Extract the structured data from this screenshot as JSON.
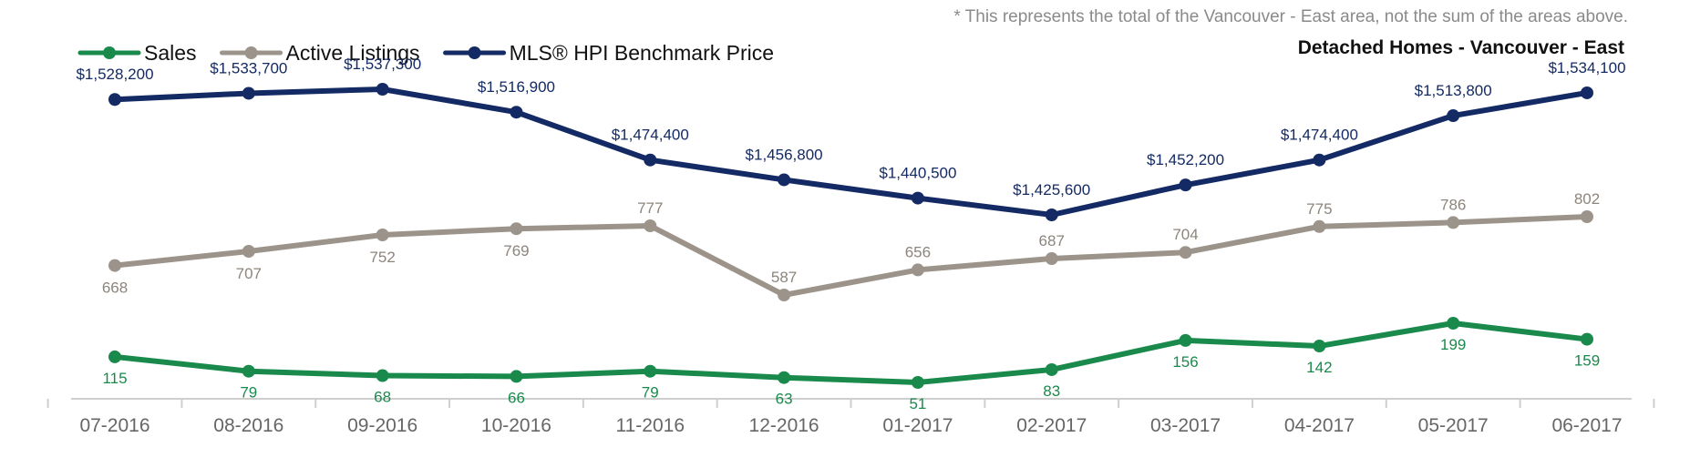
{
  "chart_data": {
    "type": "line",
    "title": "Detached Homes - Vancouver - East",
    "footnote": "* This represents the total of the Vancouver - East area, not the sum of the areas above.",
    "xlabel": "",
    "ylabel": "",
    "grid": false,
    "legend_position": "top-left",
    "categories": [
      "07-2016",
      "08-2016",
      "09-2016",
      "10-2016",
      "11-2016",
      "12-2016",
      "01-2017",
      "02-2017",
      "03-2017",
      "04-2017",
      "05-2017",
      "06-2017"
    ],
    "series": [
      {
        "name": "Sales",
        "color": "#1a8a4c",
        "values": [
          115,
          79,
          68,
          66,
          79,
          63,
          51,
          83,
          156,
          142,
          199,
          159
        ],
        "labels": [
          "115",
          "79",
          "68",
          "66",
          "79",
          "63",
          "51",
          "83",
          "156",
          "142",
          "199",
          "159"
        ]
      },
      {
        "name": "Active Listings",
        "color": "#9c948a",
        "values": [
          668,
          707,
          752,
          769,
          777,
          587,
          656,
          687,
          704,
          775,
          786,
          802
        ],
        "labels": [
          "668",
          "707",
          "752",
          "769",
          "777",
          "587",
          "656",
          "687",
          "704",
          "775",
          "786",
          "802"
        ]
      },
      {
        "name": "MLS® HPI Benchmark Price",
        "color": "#142a64",
        "values": [
          1528200,
          1533700,
          1537300,
          1516900,
          1474400,
          1456800,
          1440500,
          1425600,
          1452200,
          1474400,
          1513800,
          1534100
        ],
        "labels": [
          "$1,528,200",
          "$1,533,700",
          "$1,537,300",
          "$1,516,900",
          "$1,474,400",
          "$1,456,800",
          "$1,440,500",
          "$1,425,600",
          "$1,452,200",
          "$1,474,400",
          "$1,513,800",
          "$1,534,100"
        ]
      }
    ]
  }
}
